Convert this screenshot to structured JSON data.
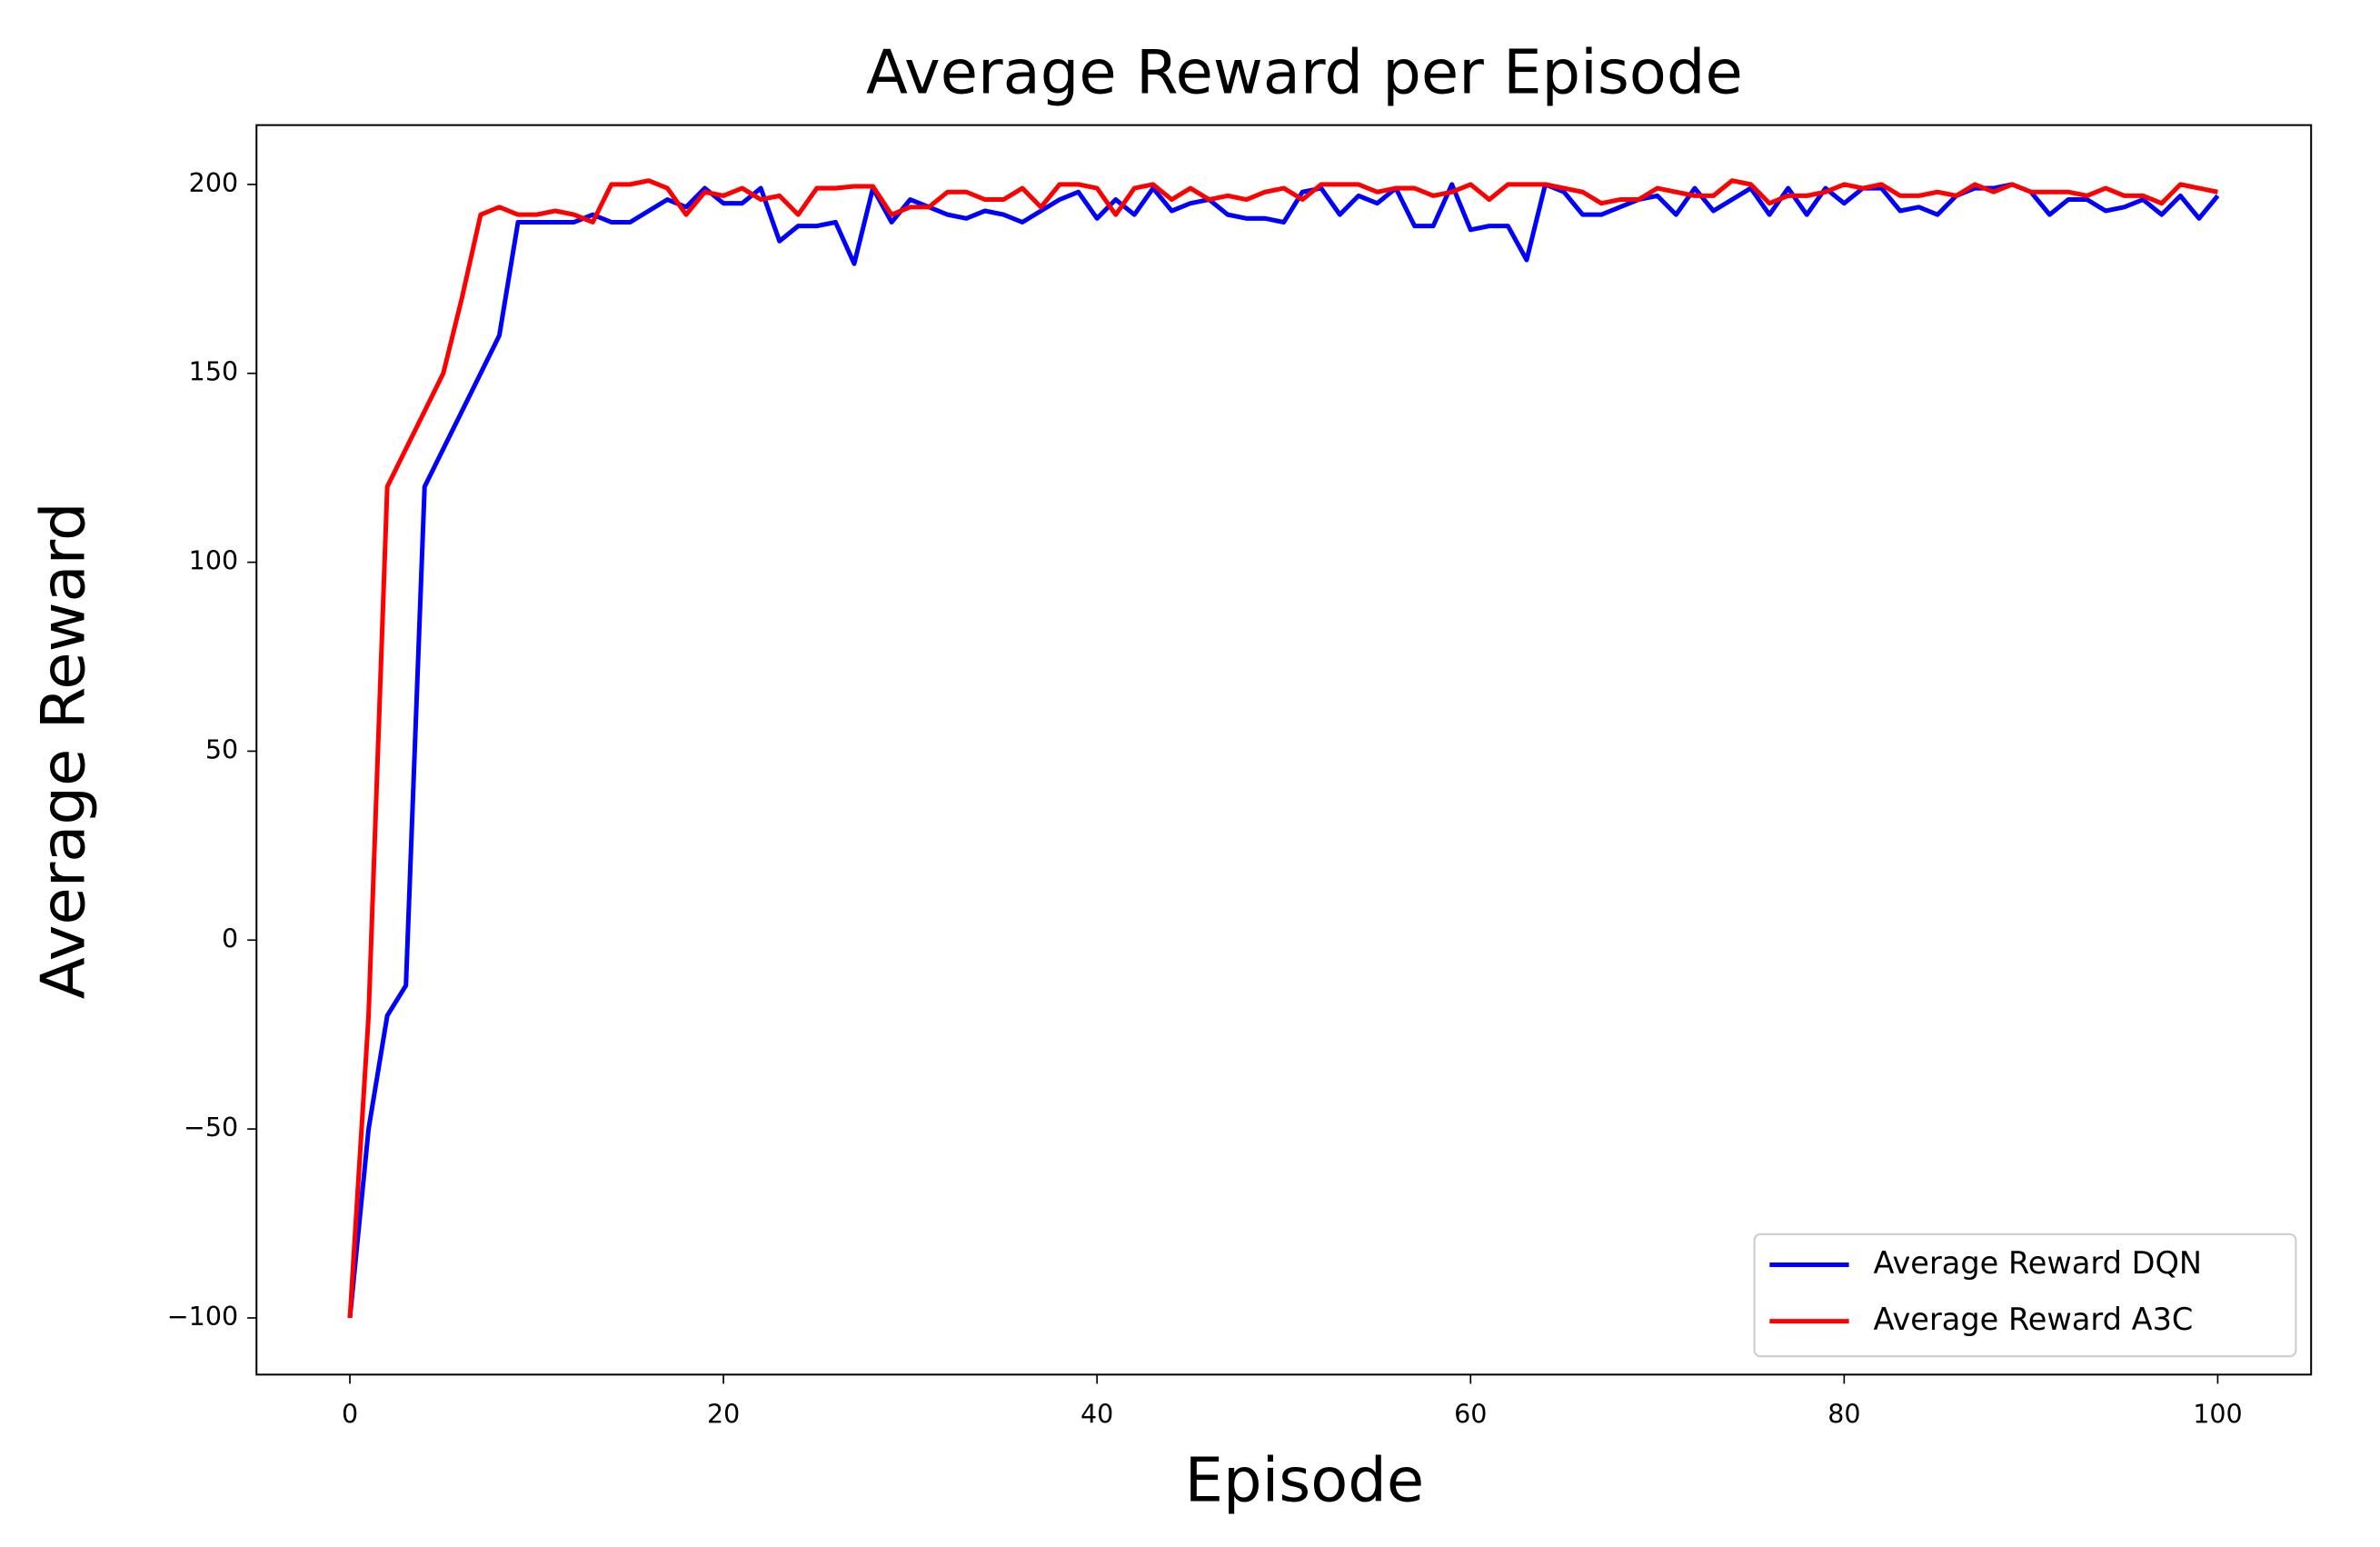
{
  "chart_data": {
    "type": "line",
    "title": "Average Reward per Episode",
    "xlabel": "Episode",
    "ylabel": "Average Reward",
    "x": [
      0,
      1,
      2,
      3,
      4,
      5,
      6,
      7,
      8,
      9,
      10,
      11,
      12,
      13,
      14,
      15,
      16,
      17,
      18,
      19,
      20,
      21,
      22,
      23,
      24,
      25,
      26,
      27,
      28,
      29,
      30,
      31,
      32,
      33,
      34,
      35,
      36,
      37,
      38,
      39,
      40,
      41,
      42,
      43,
      44,
      45,
      46,
      47,
      48,
      49,
      50,
      51,
      52,
      53,
      54,
      55,
      56,
      57,
      58,
      59,
      60,
      61,
      62,
      63,
      64,
      65,
      66,
      67,
      68,
      69,
      70,
      71,
      72,
      73,
      74,
      75,
      76,
      77,
      78,
      79,
      80,
      81,
      82,
      83,
      84,
      85,
      86,
      87,
      88,
      89,
      90,
      91,
      92,
      93,
      94,
      95,
      96,
      97,
      98,
      99,
      100
    ],
    "series": [
      {
        "name": "Average Reward DQN",
        "color": "#0000ff",
        "values": [
          -100,
          -50,
          -20,
          -12,
          120,
          130,
          140,
          150,
          160,
          190,
          190,
          190,
          190,
          192,
          190,
          190,
          193,
          196,
          194,
          199,
          195,
          195,
          199,
          185,
          189,
          189,
          190,
          179,
          199,
          190,
          196,
          194,
          192,
          191,
          193,
          192,
          190,
          193,
          196,
          198,
          191,
          196,
          192,
          199,
          193,
          195,
          196,
          192,
          191,
          191,
          190,
          198,
          199,
          192,
          197,
          195,
          199,
          189,
          189,
          200,
          188,
          189,
          189,
          180,
          200,
          198,
          192,
          192,
          194,
          196,
          197,
          192,
          199,
          193,
          196,
          199,
          192,
          199,
          192,
          199,
          195,
          199,
          199,
          193,
          194,
          192,
          197,
          199,
          199,
          200,
          198,
          192,
          196,
          196,
          193,
          194,
          196,
          192,
          197,
          191,
          197
        ]
      },
      {
        "name": "Average Reward A3C",
        "color": "#ff0000",
        "values": [
          -100,
          -20,
          120,
          130,
          140,
          150,
          170,
          192,
          194,
          192,
          192,
          193,
          192,
          190,
          200,
          200,
          201,
          199,
          192,
          198,
          197,
          199,
          196,
          197,
          192,
          199,
          199,
          199.5,
          199.5,
          192,
          194,
          194,
          198,
          198,
          196,
          196,
          199,
          194,
          200,
          200,
          199,
          192,
          199,
          200,
          196,
          199,
          196,
          197,
          196,
          198,
          199,
          196,
          200,
          200,
          200,
          198,
          199,
          199,
          197,
          198,
          200,
          196,
          200,
          200,
          200,
          199,
          198,
          195,
          196,
          196,
          199,
          198,
          197,
          197,
          201,
          200,
          195,
          197,
          197,
          198,
          200,
          199,
          200,
          197,
          197,
          198,
          197,
          200,
          198,
          200,
          198,
          198,
          198,
          197,
          199,
          197,
          197,
          195,
          200,
          199,
          198
        ]
      }
    ],
    "xlim": [
      -5,
      105
    ],
    "ylim": [
      -115,
      215.7
    ],
    "xticks": [
      0,
      20,
      40,
      60,
      80,
      100
    ],
    "yticks": [
      {
        "value": -100,
        "label": "−100"
      },
      {
        "value": -50,
        "label": "−50"
      },
      0,
      50,
      100,
      150,
      200
    ],
    "grid": false,
    "legend": "lower right"
  }
}
